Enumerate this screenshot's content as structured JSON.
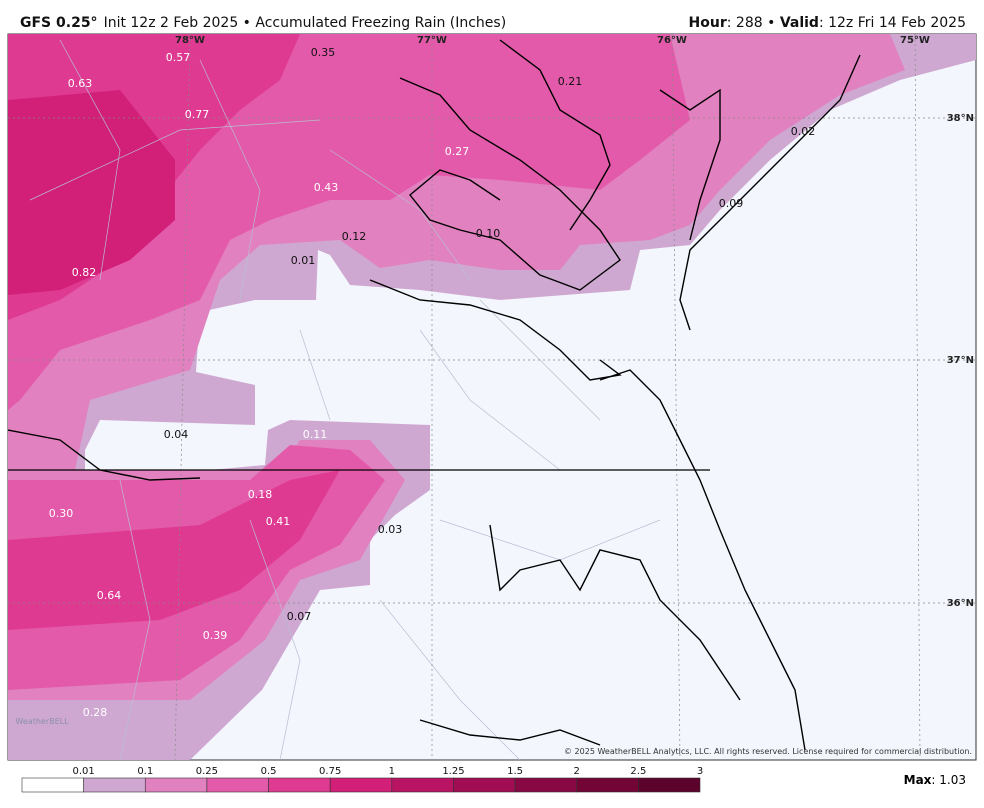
{
  "header": {
    "model": "GFS 0.25°",
    "init": "Init 12z 2 Feb 2025 • Accumulated Freezing Rain (Inches)",
    "hour_label": "Hour",
    "hour": ": 288 • ",
    "valid_label": "Valid",
    "valid": ": 12z Fri 14 Feb 2025"
  },
  "map": {
    "longitudes": [
      "78°W",
      "77°W",
      "76°W",
      "75°W"
    ],
    "latitudes": [
      "38°N",
      "37°N",
      "36°N"
    ],
    "labels": [
      "0.57",
      "0.35",
      "0.21",
      "0.63",
      "0.77",
      "0.02",
      "0.27",
      "0.43",
      "0.09",
      "0.12",
      "0.10",
      "0.82",
      "0.01",
      "0.04",
      "0.11",
      "0.18",
      "0.30",
      "0.41",
      "0.03",
      "0.64",
      "0.07",
      "0.39",
      "0.28"
    ],
    "copyright": "© 2025 WeatherBELL Analytics, LLC. All rights reserved. License required for commercial distribution.",
    "logo": "WeatherBELL"
  },
  "colorbar": {
    "ticks": [
      "0.01",
      "0.1",
      "0.25",
      "0.5",
      "0.75",
      "1",
      "1.25",
      "1.5",
      "2",
      "2.5",
      "3"
    ],
    "colors": [
      "#ffffff",
      "#cfa8d2",
      "#e181c0",
      "#e45aaa",
      "#df3a92",
      "#d21f78",
      "#b91463",
      "#a00d52",
      "#880843",
      "#720536",
      "#5c032b"
    ],
    "max_label": "Max",
    "max_value": ": 1.03"
  }
}
